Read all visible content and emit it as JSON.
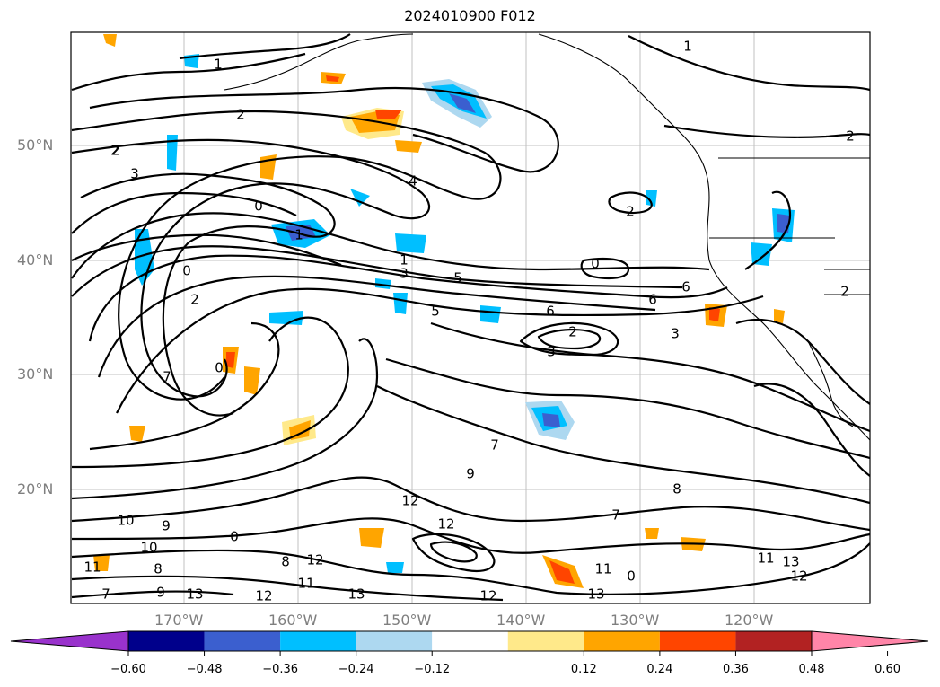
{
  "title": "2024010900 F012",
  "axes": {
    "lat_labels": [
      "50°N",
      "40°N",
      "30°N",
      "20°N"
    ],
    "lon_labels": [
      "170°W",
      "160°W",
      "150°W",
      "140°W",
      "130°W",
      "120°W"
    ]
  },
  "colorbar": {
    "colors": [
      "#9932cc",
      "#00008b",
      "#3b5fcf",
      "#00bfff",
      "#add8f0",
      "#ffffff",
      "#ffe98a",
      "#ffa500",
      "#ff4500",
      "#b22222",
      "#ff85a8"
    ],
    "tick_labels": [
      "−0.60",
      "−0.48",
      "−0.36",
      "−0.24",
      "−0.12",
      "0.12",
      "0.24",
      "0.36",
      "0.48",
      "0.60"
    ]
  },
  "contour_labels": [
    "1",
    "2",
    "2",
    "3",
    "4",
    "0",
    "1",
    "2",
    "1",
    "3",
    "0",
    "0",
    "2",
    "5",
    "6",
    "6",
    "5",
    "6",
    "2",
    "3",
    "3",
    "0",
    "7",
    "7",
    "8",
    "7",
    "9",
    "10",
    "12",
    "12",
    "9",
    "8",
    "10",
    "11",
    "12",
    "13",
    "13",
    "11",
    "12",
    "13",
    "12",
    "13",
    "9",
    "11",
    "7",
    "8",
    "0",
    "12",
    "11",
    "0",
    "2",
    "2",
    "2",
    "1"
  ]
}
